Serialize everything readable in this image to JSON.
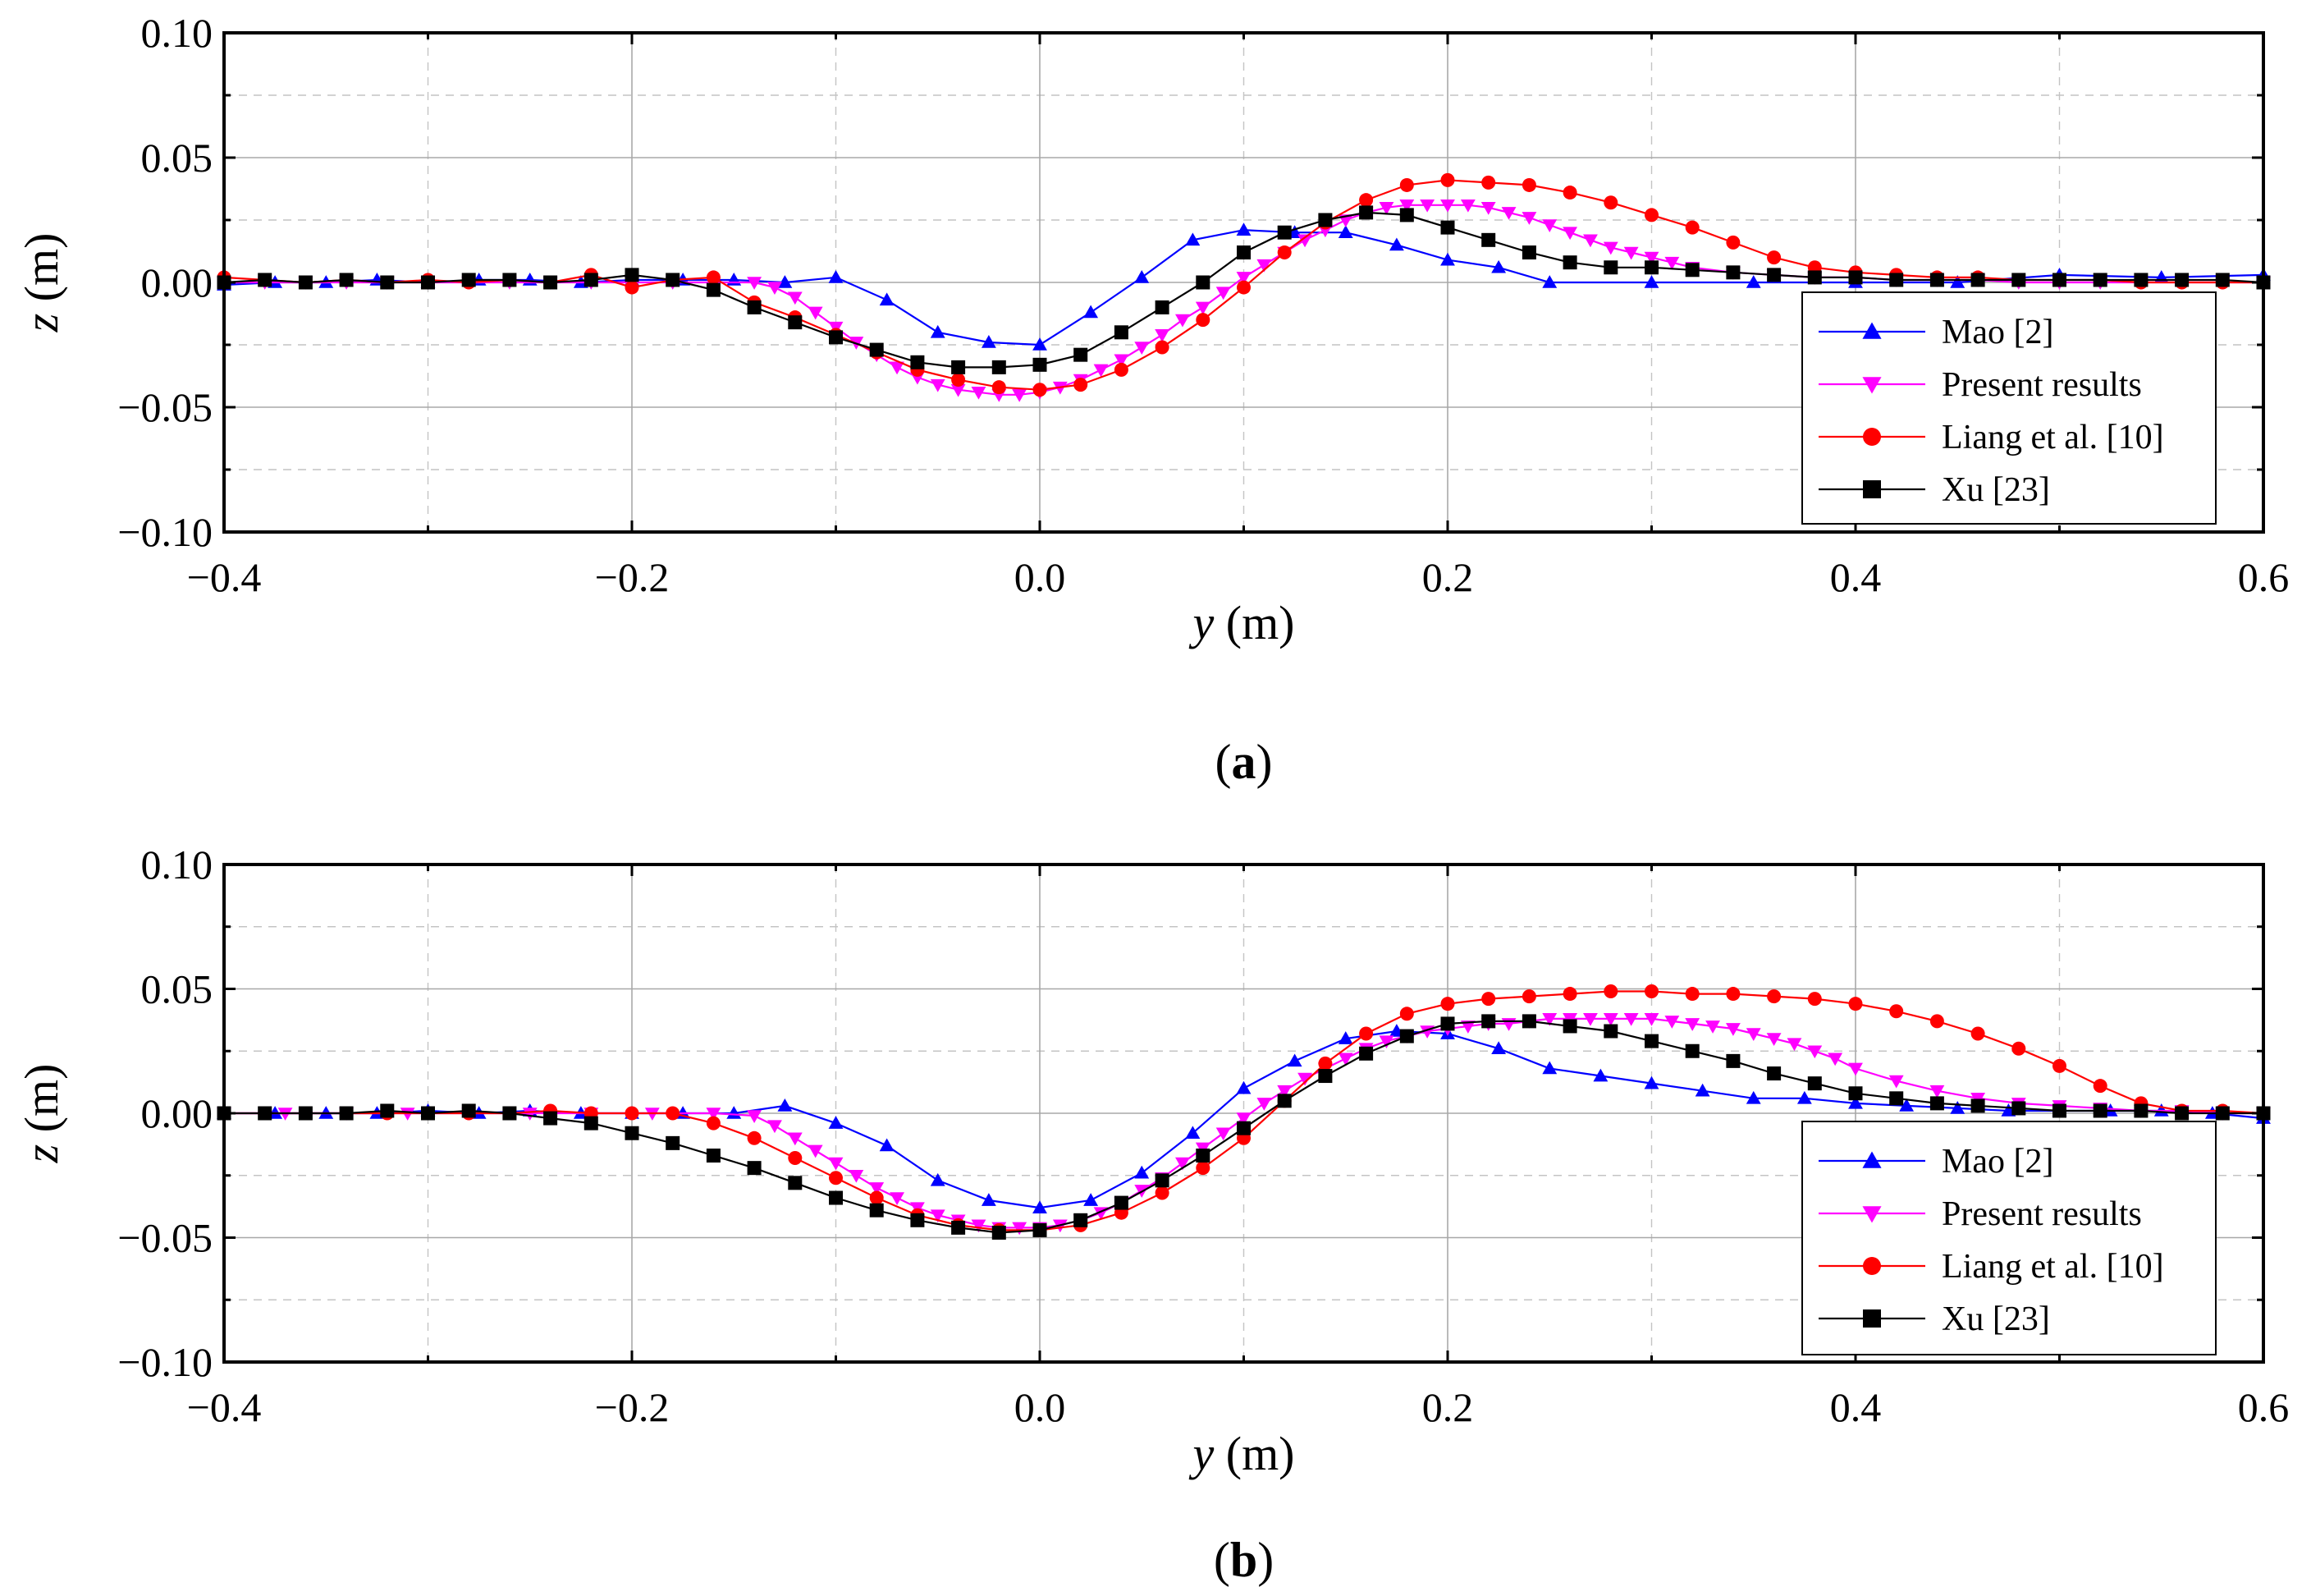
{
  "chart_data": [
    {
      "type": "line",
      "panel_label": "a",
      "xlabel_var": "y",
      "xlabel_unit": " (m)",
      "ylabel_var": "z",
      "ylabel_unit": " (m)",
      "xlim": [
        -0.4,
        0.6
      ],
      "ylim": [
        -0.1,
        0.1
      ],
      "x_ticks": [
        -0.4,
        -0.2,
        0.0,
        0.2,
        0.4,
        0.6
      ],
      "x_tick_labels": [
        "−0.4",
        "−0.2",
        "0.0",
        "0.2",
        "0.4",
        "0.6"
      ],
      "y_ticks": [
        0.1,
        0.05,
        0.0,
        -0.05,
        -0.1
      ],
      "y_tick_labels": [
        "0.10",
        "0.05",
        "0.00",
        "−0.05",
        "−0.10"
      ],
      "grid": true,
      "legend_position": "bottom-right",
      "series": [
        {
          "name": "Mao [2]",
          "color": "#0000ff",
          "marker": "triangle-up",
          "x": [
            -0.4,
            -0.375,
            -0.35,
            -0.325,
            -0.3,
            -0.275,
            -0.25,
            -0.225,
            -0.2,
            -0.175,
            -0.15,
            -0.125,
            -0.1,
            -0.075,
            -0.05,
            -0.025,
            0.0,
            0.025,
            0.05,
            0.075,
            0.1,
            0.125,
            0.15,
            0.175,
            0.2,
            0.225,
            0.25,
            0.3,
            0.35,
            0.4,
            0.45,
            0.5,
            0.55,
            0.6
          ],
          "y": [
            -0.001,
            0.0,
            0.0,
            0.001,
            0.0,
            0.001,
            0.001,
            0.0,
            0.001,
            0.001,
            0.001,
            0.0,
            0.002,
            -0.007,
            -0.02,
            -0.024,
            -0.025,
            -0.012,
            0.002,
            0.017,
            0.021,
            0.02,
            0.02,
            0.015,
            0.009,
            0.006,
            0.0,
            0.0,
            0.0,
            0.0,
            0.0,
            0.003,
            0.002,
            0.003
          ]
        },
        {
          "name": "Present results",
          "color": "#ff00ff",
          "marker": "triangle-down",
          "x": [
            -0.4,
            -0.38,
            -0.36,
            -0.34,
            -0.32,
            -0.3,
            -0.28,
            -0.26,
            -0.24,
            -0.22,
            -0.2,
            -0.18,
            -0.16,
            -0.14,
            -0.13,
            -0.12,
            -0.11,
            -0.1,
            -0.09,
            -0.08,
            -0.07,
            -0.06,
            -0.05,
            -0.04,
            -0.03,
            -0.02,
            -0.01,
            0.0,
            0.01,
            0.02,
            0.03,
            0.04,
            0.05,
            0.06,
            0.07,
            0.08,
            0.09,
            0.1,
            0.11,
            0.12,
            0.13,
            0.14,
            0.15,
            0.16,
            0.17,
            0.18,
            0.19,
            0.2,
            0.21,
            0.22,
            0.23,
            0.24,
            0.25,
            0.26,
            0.27,
            0.28,
            0.29,
            0.3,
            0.31,
            0.32,
            0.34,
            0.36,
            0.38,
            0.4,
            0.42,
            0.44,
            0.46,
            0.48,
            0.5,
            0.52,
            0.54,
            0.56,
            0.58,
            0.6
          ],
          "y": [
            0.0,
            0.0,
            0.0,
            0.0,
            0.0,
            0.0,
            0.0,
            0.0,
            0.0,
            0.0,
            0.0,
            0.0,
            0.0,
            0.0,
            -0.002,
            -0.006,
            -0.012,
            -0.018,
            -0.024,
            -0.029,
            -0.034,
            -0.038,
            -0.041,
            -0.043,
            -0.044,
            -0.045,
            -0.045,
            -0.044,
            -0.042,
            -0.039,
            -0.035,
            -0.031,
            -0.026,
            -0.021,
            -0.015,
            -0.01,
            -0.004,
            0.002,
            0.007,
            0.012,
            0.017,
            0.021,
            0.025,
            0.028,
            0.03,
            0.031,
            0.031,
            0.031,
            0.031,
            0.03,
            0.028,
            0.026,
            0.023,
            0.02,
            0.017,
            0.014,
            0.012,
            0.01,
            0.008,
            0.006,
            0.004,
            0.003,
            0.002,
            0.002,
            0.001,
            0.001,
            0.001,
            0.0,
            0.0,
            0.0,
            0.0,
            0.0,
            0.0,
            0.0
          ]
        },
        {
          "name": "Liang et al. [10]",
          "color": "#ff0000",
          "marker": "circle",
          "x": [
            -0.4,
            -0.38,
            -0.36,
            -0.34,
            -0.32,
            -0.3,
            -0.28,
            -0.26,
            -0.24,
            -0.22,
            -0.2,
            -0.18,
            -0.16,
            -0.14,
            -0.12,
            -0.1,
            -0.08,
            -0.06,
            -0.04,
            -0.02,
            0.0,
            0.02,
            0.04,
            0.06,
            0.08,
            0.1,
            0.12,
            0.14,
            0.16,
            0.18,
            0.2,
            0.22,
            0.24,
            0.26,
            0.28,
            0.3,
            0.32,
            0.34,
            0.36,
            0.38,
            0.4,
            0.42,
            0.44,
            0.46,
            0.48,
            0.5,
            0.52,
            0.54,
            0.56,
            0.58,
            0.6
          ],
          "y": [
            0.002,
            0.001,
            0.0,
            0.001,
            0.0,
            0.001,
            0.0,
            0.001,
            0.0,
            0.003,
            -0.002,
            0.001,
            0.002,
            -0.008,
            -0.014,
            -0.021,
            -0.028,
            -0.035,
            -0.039,
            -0.042,
            -0.043,
            -0.041,
            -0.035,
            -0.026,
            -0.015,
            -0.002,
            0.012,
            0.024,
            0.033,
            0.039,
            0.041,
            0.04,
            0.039,
            0.036,
            0.032,
            0.027,
            0.022,
            0.016,
            0.01,
            0.006,
            0.004,
            0.003,
            0.002,
            0.002,
            0.001,
            0.001,
            0.001,
            0.0,
            0.0,
            0.0,
            0.0
          ]
        },
        {
          "name": "Xu [23]",
          "color": "#000000",
          "marker": "square",
          "x": [
            -0.4,
            -0.38,
            -0.36,
            -0.34,
            -0.32,
            -0.3,
            -0.28,
            -0.26,
            -0.24,
            -0.22,
            -0.2,
            -0.18,
            -0.16,
            -0.14,
            -0.12,
            -0.1,
            -0.08,
            -0.06,
            -0.04,
            -0.02,
            0.0,
            0.02,
            0.04,
            0.06,
            0.08,
            0.1,
            0.12,
            0.14,
            0.16,
            0.18,
            0.2,
            0.22,
            0.24,
            0.26,
            0.28,
            0.3,
            0.32,
            0.34,
            0.36,
            0.38,
            0.4,
            0.42,
            0.44,
            0.46,
            0.48,
            0.5,
            0.52,
            0.54,
            0.56,
            0.58,
            0.6
          ],
          "y": [
            0.0,
            0.001,
            0.0,
            0.001,
            0.0,
            0.0,
            0.001,
            0.001,
            0.0,
            0.001,
            0.003,
            0.001,
            -0.003,
            -0.01,
            -0.016,
            -0.022,
            -0.027,
            -0.032,
            -0.034,
            -0.034,
            -0.033,
            -0.029,
            -0.02,
            -0.01,
            0.0,
            0.012,
            0.02,
            0.025,
            0.028,
            0.027,
            0.022,
            0.017,
            0.012,
            0.008,
            0.006,
            0.006,
            0.005,
            0.004,
            0.003,
            0.002,
            0.002,
            0.001,
            0.001,
            0.001,
            0.001,
            0.001,
            0.001,
            0.001,
            0.001,
            0.001,
            0.0
          ]
        }
      ]
    },
    {
      "type": "line",
      "panel_label": "b",
      "xlabel_var": "y",
      "xlabel_unit": " (m)",
      "ylabel_var": "z",
      "ylabel_unit": " (m)",
      "xlim": [
        -0.4,
        0.6
      ],
      "ylim": [
        -0.1,
        0.1
      ],
      "x_ticks": [
        -0.4,
        -0.2,
        0.0,
        0.2,
        0.4,
        0.6
      ],
      "x_tick_labels": [
        "−0.4",
        "−0.2",
        "0.0",
        "0.2",
        "0.4",
        "0.6"
      ],
      "y_ticks": [
        0.1,
        0.05,
        0.0,
        -0.05,
        -0.1
      ],
      "y_tick_labels": [
        "0.10",
        "0.05",
        "0.00",
        "−0.05",
        "−0.10"
      ],
      "grid": true,
      "legend_position": "bottom-right",
      "series": [
        {
          "name": "Mao [2]",
          "color": "#0000ff",
          "marker": "triangle-up",
          "x": [
            -0.4,
            -0.375,
            -0.35,
            -0.325,
            -0.3,
            -0.275,
            -0.25,
            -0.225,
            -0.2,
            -0.175,
            -0.15,
            -0.125,
            -0.1,
            -0.075,
            -0.05,
            -0.025,
            0.0,
            0.025,
            0.05,
            0.075,
            0.1,
            0.125,
            0.15,
            0.175,
            0.2,
            0.225,
            0.25,
            0.275,
            0.3,
            0.325,
            0.35,
            0.375,
            0.4,
            0.425,
            0.45,
            0.475,
            0.5,
            0.525,
            0.55,
            0.575,
            0.6
          ],
          "y": [
            0.0,
            0.0,
            0.0,
            0.0,
            0.001,
            0.0,
            0.001,
            0.0,
            0.0,
            0.0,
            0.0,
            0.003,
            -0.004,
            -0.013,
            -0.027,
            -0.035,
            -0.038,
            -0.035,
            -0.024,
            -0.008,
            0.01,
            0.021,
            0.03,
            0.033,
            0.032,
            0.026,
            0.018,
            0.015,
            0.012,
            0.009,
            0.006,
            0.006,
            0.004,
            0.003,
            0.002,
            0.001,
            0.001,
            0.001,
            0.001,
            0.0,
            -0.002
          ]
        },
        {
          "name": "Present results",
          "color": "#ff00ff",
          "marker": "triangle-down",
          "x": [
            -0.4,
            -0.37,
            -0.34,
            -0.31,
            -0.28,
            -0.25,
            -0.22,
            -0.19,
            -0.16,
            -0.14,
            -0.13,
            -0.12,
            -0.11,
            -0.1,
            -0.09,
            -0.08,
            -0.07,
            -0.06,
            -0.05,
            -0.04,
            -0.03,
            -0.02,
            -0.01,
            0.0,
            0.01,
            0.02,
            0.03,
            0.04,
            0.05,
            0.06,
            0.07,
            0.08,
            0.09,
            0.1,
            0.11,
            0.12,
            0.13,
            0.14,
            0.15,
            0.16,
            0.17,
            0.18,
            0.19,
            0.2,
            0.21,
            0.22,
            0.23,
            0.24,
            0.25,
            0.26,
            0.27,
            0.28,
            0.29,
            0.3,
            0.31,
            0.32,
            0.33,
            0.34,
            0.35,
            0.36,
            0.37,
            0.38,
            0.39,
            0.4,
            0.42,
            0.44,
            0.46,
            0.48,
            0.5,
            0.52,
            0.54,
            0.56,
            0.58,
            0.6
          ],
          "y": [
            0.0,
            0.0,
            0.0,
            0.0,
            0.0,
            0.0,
            0.0,
            0.0,
            0.0,
            -0.001,
            -0.005,
            -0.01,
            -0.015,
            -0.02,
            -0.025,
            -0.03,
            -0.034,
            -0.038,
            -0.041,
            -0.043,
            -0.045,
            -0.046,
            -0.046,
            -0.046,
            -0.045,
            -0.043,
            -0.04,
            -0.036,
            -0.031,
            -0.026,
            -0.02,
            -0.014,
            -0.008,
            -0.002,
            0.004,
            0.009,
            0.014,
            0.018,
            0.022,
            0.026,
            0.029,
            0.031,
            0.033,
            0.034,
            0.035,
            0.036,
            0.036,
            0.037,
            0.038,
            0.038,
            0.038,
            0.038,
            0.038,
            0.038,
            0.037,
            0.036,
            0.035,
            0.034,
            0.032,
            0.03,
            0.028,
            0.025,
            0.022,
            0.018,
            0.013,
            0.009,
            0.006,
            0.004,
            0.003,
            0.002,
            0.001,
            0.001,
            0.0,
            0.0
          ]
        },
        {
          "name": "Liang et al. [10]",
          "color": "#ff0000",
          "marker": "circle",
          "x": [
            -0.4,
            -0.38,
            -0.36,
            -0.34,
            -0.32,
            -0.3,
            -0.28,
            -0.26,
            -0.24,
            -0.22,
            -0.2,
            -0.18,
            -0.16,
            -0.14,
            -0.12,
            -0.1,
            -0.08,
            -0.06,
            -0.04,
            -0.02,
            0.0,
            0.02,
            0.04,
            0.06,
            0.08,
            0.1,
            0.12,
            0.14,
            0.16,
            0.18,
            0.2,
            0.22,
            0.24,
            0.26,
            0.28,
            0.3,
            0.32,
            0.34,
            0.36,
            0.38,
            0.4,
            0.42,
            0.44,
            0.46,
            0.48,
            0.5,
            0.52,
            0.54,
            0.56,
            0.58,
            0.6
          ],
          "y": [
            0.0,
            0.0,
            0.0,
            0.0,
            0.0,
            0.0,
            0.0,
            0.0,
            0.001,
            0.0,
            0.0,
            0.0,
            -0.004,
            -0.01,
            -0.018,
            -0.026,
            -0.034,
            -0.041,
            -0.045,
            -0.047,
            -0.047,
            -0.045,
            -0.04,
            -0.032,
            -0.022,
            -0.01,
            0.005,
            0.02,
            0.032,
            0.04,
            0.044,
            0.046,
            0.047,
            0.048,
            0.049,
            0.049,
            0.048,
            0.048,
            0.047,
            0.046,
            0.044,
            0.041,
            0.037,
            0.032,
            0.026,
            0.019,
            0.011,
            0.004,
            0.001,
            0.001,
            0.0
          ]
        },
        {
          "name": "Xu [23]",
          "color": "#000000",
          "marker": "square",
          "x": [
            -0.4,
            -0.38,
            -0.36,
            -0.34,
            -0.32,
            -0.3,
            -0.28,
            -0.26,
            -0.24,
            -0.22,
            -0.2,
            -0.18,
            -0.16,
            -0.14,
            -0.12,
            -0.1,
            -0.08,
            -0.06,
            -0.04,
            -0.02,
            0.0,
            0.02,
            0.04,
            0.06,
            0.08,
            0.1,
            0.12,
            0.14,
            0.16,
            0.18,
            0.2,
            0.22,
            0.24,
            0.26,
            0.28,
            0.3,
            0.32,
            0.34,
            0.36,
            0.38,
            0.4,
            0.42,
            0.44,
            0.46,
            0.48,
            0.5,
            0.52,
            0.54,
            0.56,
            0.58,
            0.6
          ],
          "y": [
            0.0,
            0.0,
            0.0,
            0.0,
            0.001,
            0.0,
            0.001,
            0.0,
            -0.002,
            -0.004,
            -0.008,
            -0.012,
            -0.017,
            -0.022,
            -0.028,
            -0.034,
            -0.039,
            -0.043,
            -0.046,
            -0.048,
            -0.047,
            -0.043,
            -0.036,
            -0.027,
            -0.017,
            -0.006,
            0.005,
            0.015,
            0.024,
            0.031,
            0.036,
            0.037,
            0.037,
            0.035,
            0.033,
            0.029,
            0.025,
            0.021,
            0.016,
            0.012,
            0.008,
            0.006,
            0.004,
            0.003,
            0.002,
            0.001,
            0.001,
            0.001,
            0.0,
            0.0,
            0.0
          ]
        }
      ]
    }
  ]
}
